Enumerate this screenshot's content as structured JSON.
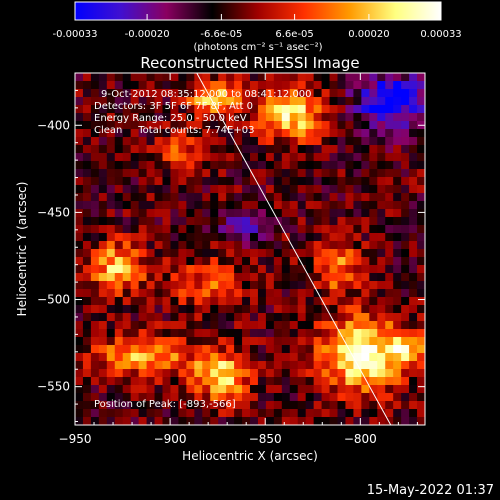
{
  "colorbar": {
    "ticks": [
      "-0.00033",
      "-0.00020",
      "-6.6e-05",
      "6.6e-05",
      "0.00020",
      "0.00033"
    ],
    "tick_values": [
      -0.00033,
      -0.0002,
      -6.6e-05,
      6.6e-05,
      0.0002,
      0.00033
    ],
    "range": [
      -0.00033,
      0.00033
    ],
    "label": "(photons cm⁻² s⁻¹ asec⁻²)",
    "colors": [
      "#0000ff",
      "#4010d0",
      "#8a0060",
      "#000000",
      "#a00000",
      "#ff3000",
      "#ff9a00",
      "#ffff80",
      "#ffffff"
    ]
  },
  "chart_data": {
    "type": "heatmap",
    "title": "Reconstructed RHESSI Image",
    "xlabel": "Heliocentric X (arcsec)",
    "ylabel": "Heliocentric Y (arcsec)",
    "xlim": [
      -950,
      -766
    ],
    "ylim": [
      -572,
      -370
    ],
    "xticks": [
      -950,
      -900,
      -850,
      -800
    ],
    "yticks": [
      -400,
      -450,
      -500,
      -550
    ],
    "xtick_labels": [
      "−950",
      "−900",
      "−850",
      "−800"
    ],
    "ytick_labels": [
      "−400",
      "−450",
      "−500",
      "−550"
    ],
    "limb_line": [
      [
        -887,
        -368
      ],
      [
        -784,
        -572
      ]
    ],
    "info_lines": [
      "9-Oct-2012 08:35:12.000 to 08:41:12.000",
      "Detectors: 3F 5F 6F 7F 8F, Att 0",
      "Energy Range: 25.0 - 50.0 keV",
      "Clean     Total counts: 7.74E+03"
    ],
    "peak_label": "Position of Peak: [-893,-566]",
    "peak": [
      -893,
      -566
    ],
    "grid": false
  },
  "footer": {
    "timestamp": "15-May-2022 01:37"
  }
}
